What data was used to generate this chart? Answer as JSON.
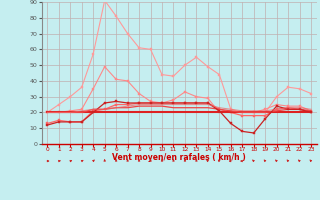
{
  "xlabel": "Vent moyen/en rafales ( km/h )",
  "x": [
    0,
    1,
    2,
    3,
    4,
    5,
    6,
    7,
    8,
    9,
    10,
    11,
    12,
    13,
    14,
    15,
    16,
    17,
    18,
    19,
    20,
    21,
    22,
    23
  ],
  "ylim": [
    0,
    90
  ],
  "yticks": [
    0,
    10,
    20,
    30,
    40,
    50,
    60,
    70,
    80,
    90
  ],
  "background_color": "#c5eef0",
  "grid_color": "#c0b0b0",
  "series": [
    {
      "color": "#ff9999",
      "alpha": 1.0,
      "lw": 0.8,
      "marker": "s",
      "ms": 1.8,
      "values": [
        20,
        25,
        30,
        36,
        57,
        91,
        81,
        70,
        61,
        60,
        44,
        43,
        50,
        55,
        49,
        44,
        22,
        20,
        20,
        20,
        30,
        36,
        35,
        32
      ]
    },
    {
      "color": "#ff8888",
      "alpha": 1.0,
      "lw": 0.8,
      "marker": "s",
      "ms": 1.8,
      "values": [
        20,
        20,
        21,
        22,
        35,
        49,
        41,
        40,
        32,
        27,
        26,
        28,
        33,
        30,
        29,
        20,
        20,
        20,
        20,
        22,
        25,
        24,
        24,
        21
      ]
    },
    {
      "color": "#ff6666",
      "alpha": 1.0,
      "lw": 0.9,
      "marker": "s",
      "ms": 1.8,
      "values": [
        13,
        15,
        14,
        14,
        21,
        22,
        25,
        25,
        26,
        26,
        26,
        26,
        26,
        26,
        26,
        22,
        20,
        18,
        18,
        18,
        22,
        23,
        22,
        20
      ]
    },
    {
      "color": "#dd2222",
      "alpha": 1.0,
      "lw": 1.5,
      "marker": null,
      "ms": 0,
      "values": [
        20,
        20,
        20,
        20,
        20,
        20,
        20,
        20,
        20,
        20,
        20,
        20,
        20,
        20,
        20,
        20,
        20,
        20,
        20,
        20,
        20,
        20,
        20,
        20
      ]
    },
    {
      "color": "#ee4444",
      "alpha": 1.0,
      "lw": 0.9,
      "marker": null,
      "ms": 0,
      "values": [
        20,
        20,
        20,
        20,
        22,
        22,
        23,
        23,
        24,
        24,
        24,
        23,
        23,
        23,
        23,
        22,
        21,
        20,
        20,
        20,
        21,
        22,
        22,
        21
      ]
    },
    {
      "color": "#cc2222",
      "alpha": 1.0,
      "lw": 0.9,
      "marker": "s",
      "ms": 1.8,
      "values": [
        12,
        14,
        14,
        14,
        20,
        26,
        27,
        26,
        26,
        26,
        26,
        26,
        26,
        26,
        26,
        21,
        13,
        8,
        7,
        16,
        24,
        22,
        22,
        20
      ]
    },
    {
      "color": "#ee6666",
      "alpha": 0.7,
      "lw": 0.8,
      "marker": null,
      "ms": 0,
      "values": [
        20,
        20,
        20,
        21,
        22,
        22,
        23,
        24,
        25,
        25,
        25,
        25,
        25,
        25,
        25,
        23,
        22,
        21,
        21,
        21,
        22,
        23,
        23,
        22
      ]
    }
  ],
  "wind_dirs": [
    90,
    80,
    75,
    60,
    45,
    0,
    0,
    0,
    0,
    0,
    0,
    0,
    0,
    0,
    315,
    315,
    270,
    270,
    315,
    315,
    315,
    315,
    315,
    315
  ]
}
